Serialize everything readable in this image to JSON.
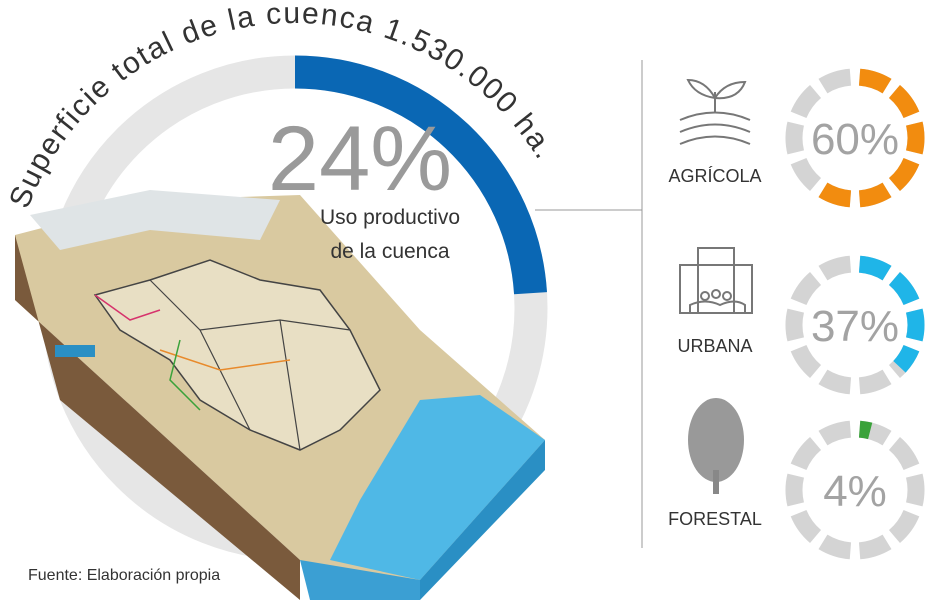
{
  "title": "Superficie total de la cuenca 1.530.000 ha.",
  "main": {
    "value": 24,
    "label": "24%",
    "color": "#0a67b4",
    "caption": [
      "Uso productivo",
      "de la cuenca"
    ]
  },
  "uses": [
    {
      "name": "AGRÍCOLA",
      "value": 60,
      "label": "60%",
      "color": "#f28c0f"
    },
    {
      "name": "URBANA",
      "value": 37,
      "label": "37%",
      "color": "#1fb5e8"
    },
    {
      "name": "FORESTAL",
      "value": 4,
      "label": "4%",
      "color": "#3aa23a"
    }
  ],
  "source": "Fuente: Elaboración propia"
}
